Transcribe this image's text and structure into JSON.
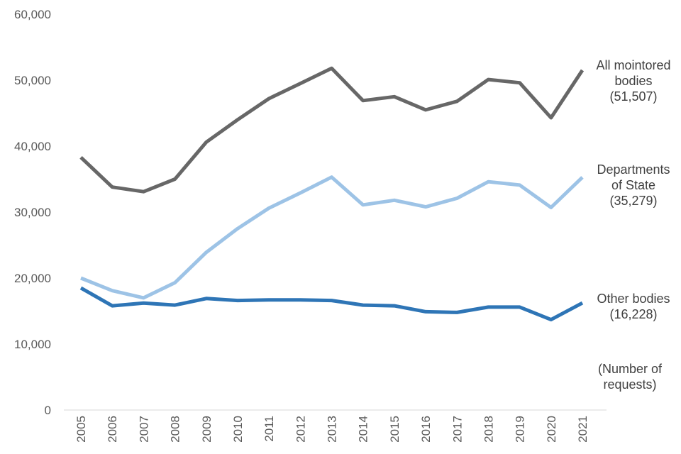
{
  "chart_data": {
    "type": "line",
    "x": [
      "2005",
      "2006",
      "2007",
      "2008",
      "2009",
      "2010",
      "2011",
      "2012",
      "2013",
      "2014",
      "2015",
      "2016",
      "2017",
      "2018",
      "2019",
      "2020",
      "2021"
    ],
    "ylim": [
      0,
      60000
    ],
    "yticks": [
      "0",
      "10,000",
      "20,000",
      "30,000",
      "40,000",
      "50,000",
      "60,000"
    ],
    "ytick_values": [
      0,
      10000,
      20000,
      30000,
      40000,
      50000,
      60000
    ],
    "grid": false,
    "series": [
      {
        "label_lines": [
          "All mointored",
          "bodies",
          "(51,507)"
        ],
        "color": "#676767",
        "values": [
          38300,
          33800,
          33100,
          35000,
          40600,
          44000,
          47200,
          49500,
          51800,
          46900,
          47500,
          45500,
          46800,
          50100,
          49600,
          44300,
          51507
        ]
      },
      {
        "label_lines": [
          "Departments",
          "of State",
          "(35,279)"
        ],
        "color": "#9DC3E6",
        "values": [
          20000,
          18100,
          17000,
          19300,
          23900,
          27500,
          30600,
          32900,
          35300,
          31100,
          31800,
          30800,
          32100,
          34600,
          34100,
          30700,
          35279
        ]
      },
      {
        "label_lines": [
          "Other bodies",
          "(16,228)"
        ],
        "color": "#2E75B6",
        "values": [
          18500,
          15800,
          16200,
          15900,
          16900,
          16600,
          16700,
          16700,
          16600,
          15900,
          15800,
          14900,
          14800,
          15600,
          15600,
          13700,
          16228
        ]
      }
    ],
    "annotation_lines": [
      "(Number of",
      "requests)"
    ]
  }
}
